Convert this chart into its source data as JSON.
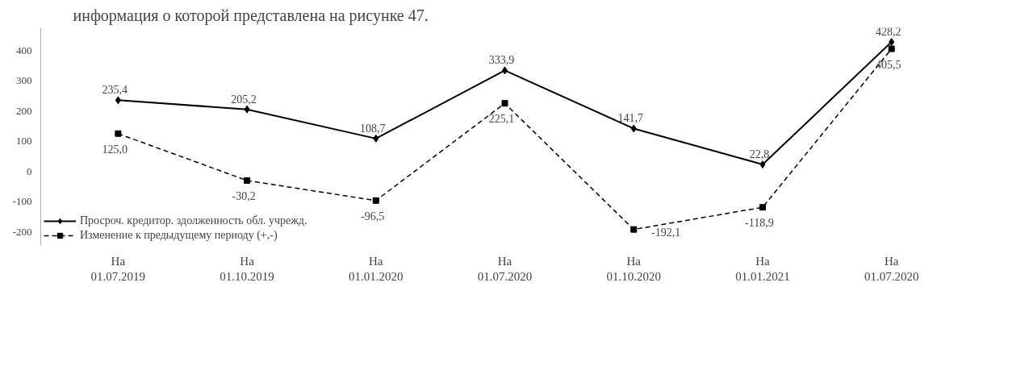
{
  "chart_data": {
    "type": "line",
    "annotations": [
      "информация о которой представлена на рисунке 47."
    ],
    "categories": [
      "На\n01.07.2019",
      "На\n01.10.2019",
      "На\n01.01.2020",
      "На\n01.07.2020",
      "На\n01.10.2020",
      "На\n01.01.2021",
      "На\n01.07.2020"
    ],
    "series": [
      {
        "name": "Просроч. кредитор. здолженность обл. учрежд.",
        "color": "#000000",
        "marker": "diamond",
        "line_style": "solid",
        "values": [
          235.4,
          205.2,
          108.7,
          333.9,
          141.7,
          22.8,
          428.2
        ],
        "value_labels": [
          "235,4",
          "205,2",
          "108,7",
          "333,9",
          "141,7",
          "22,8",
          "428,2"
        ]
      },
      {
        "name": "Изменение к предыдущему периоду (+,-)",
        "color": "#000000",
        "marker": "square",
        "line_style": "dashed",
        "values": [
          125.0,
          -30.2,
          -96.5,
          225.1,
          -192.1,
          -118.9,
          405.5
        ],
        "value_labels": [
          "125,0",
          "-30,2",
          "-96,5",
          "225,1",
          "-192,1",
          "-118,9",
          "405,5"
        ]
      }
    ],
    "ylim": [
      -245,
      475
    ],
    "yticks": [
      -200,
      -100,
      0,
      100,
      200,
      300,
      400
    ],
    "grid": false,
    "legend": "bottom left"
  }
}
